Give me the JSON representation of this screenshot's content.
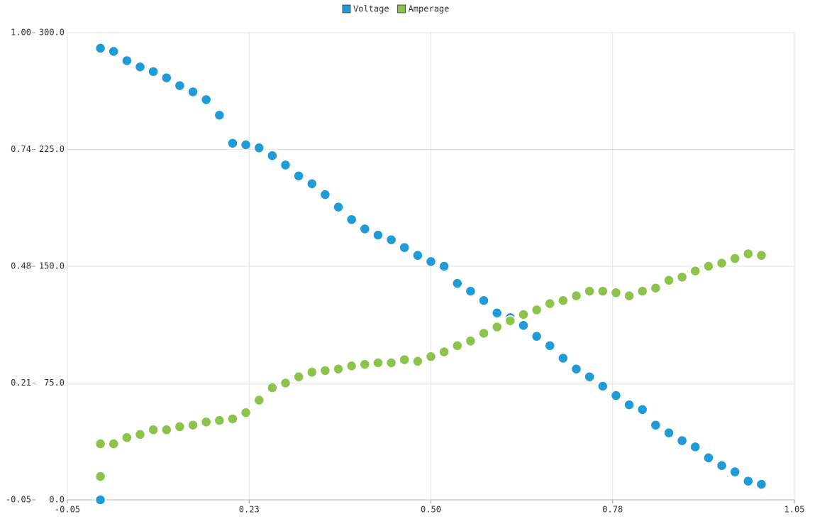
{
  "chart_data": {
    "type": "scatter",
    "legend": "top",
    "grid": true,
    "xlim": [
      -0.05,
      1.05
    ],
    "xticks": [
      -0.05,
      {
        "value": 0.225,
        "label": "0.23"
      },
      {
        "value": 0.5,
        "label": "0.50"
      },
      {
        "value": 0.775,
        "label": "0.78"
      },
      {
        "value": 1.05,
        "label": "1.05"
      }
    ],
    "ylim": [
      -0.05,
      1.0
    ],
    "yticks": [
      -0.05,
      {
        "value": 0.2125,
        "label": "0.21"
      },
      {
        "value": 0.475,
        "label": "0.48"
      },
      {
        "value": 0.7375,
        "label": "0.74"
      },
      {
        "value": 1.0,
        "label": "1.00"
      }
    ],
    "y2lim": [
      0,
      300
    ],
    "y2ticks": [
      {
        "value": 0,
        "label": "0.0"
      },
      {
        "value": 75,
        "label": "75.0"
      },
      {
        "value": 150,
        "label": "150.0"
      },
      {
        "value": 225,
        "label": "225.0"
      },
      {
        "value": 300,
        "label": "300.0"
      }
    ],
    "x": [
      0,
      0,
      0.02,
      0.04,
      0.06,
      0.08,
      0.1,
      0.12,
      0.14,
      0.16,
      0.18,
      0.2,
      0.22,
      0.24,
      0.26,
      0.28,
      0.3,
      0.32,
      0.34,
      0.36,
      0.38,
      0.4,
      0.42,
      0.44,
      0.46,
      0.48,
      0.5,
      0.52,
      0.54,
      0.56,
      0.58,
      0.6,
      0.62,
      0.64,
      0.66,
      0.68,
      0.7,
      0.72,
      0.74,
      0.76,
      0.78,
      0.8,
      0.82,
      0.84,
      0.86,
      0.88,
      0.9,
      0.92,
      0.94,
      0.96,
      0.98,
      1.0
    ],
    "series": [
      {
        "name": "Voltage",
        "color": "#1f9bd7",
        "axis": "y2",
        "values": [
          0,
          290,
          288,
          282,
          278,
          275,
          271,
          266,
          262,
          257,
          247,
          229,
          228,
          226,
          221,
          215,
          208,
          203,
          196,
          188,
          180,
          174,
          170,
          167,
          162,
          157,
          153,
          150,
          139,
          134,
          128,
          120,
          117,
          112,
          105,
          99,
          91,
          84,
          79,
          73,
          67,
          61,
          58,
          48,
          43,
          38,
          34,
          27,
          22,
          18,
          12,
          10
        ]
      },
      {
        "name": "Amperage",
        "color": "#8dc34a",
        "axis": "y2",
        "values": [
          15,
          36,
          36,
          40,
          42,
          45,
          45,
          47,
          48,
          50,
          51,
          52,
          56,
          64,
          72,
          75,
          79,
          82,
          83,
          84,
          86,
          87,
          88,
          88,
          90,
          89,
          92,
          95,
          99,
          102,
          107,
          111,
          115,
          119,
          122,
          126,
          128,
          131,
          134,
          134,
          133,
          131,
          134,
          136,
          141,
          143,
          147,
          150,
          152,
          155,
          158,
          157
        ]
      }
    ]
  }
}
